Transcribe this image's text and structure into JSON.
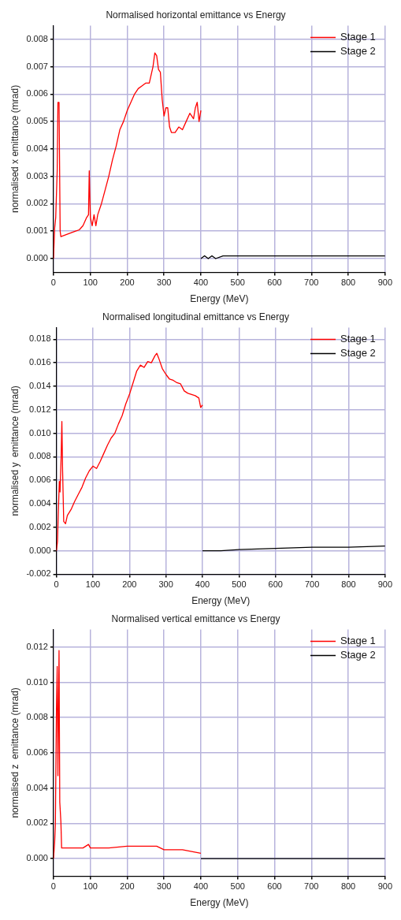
{
  "chart_data": [
    {
      "type": "line",
      "title": "Normalised horizontal emittance vs Energy",
      "xlabel": "Energy (MeV)",
      "ylabel": "normalised x emittance (mrad)",
      "xlim": [
        0,
        900
      ],
      "xticks": [
        0,
        100,
        200,
        300,
        400,
        500,
        600,
        700,
        800,
        900
      ],
      "ylim": [
        -0.0005,
        0.0085
      ],
      "yticks": [
        {
          "value": 0,
          "label": "0.000"
        },
        {
          "value": 0.001,
          "label": "0.001"
        },
        {
          "value": 0.002,
          "label": "0.002"
        },
        {
          "value": 0.003,
          "label": "0.003"
        },
        {
          "value": 0.004,
          "label": "0.004"
        },
        {
          "value": 0.005,
          "label": "0.005"
        },
        {
          "value": 0.006,
          "label": "0.006"
        },
        {
          "value": 0.007,
          "label": "0.007"
        },
        {
          "value": 0.008,
          "label": "0.008"
        }
      ],
      "grid": true,
      "legend": "top right",
      "series": [
        {
          "name": "Stage 1",
          "color": "#ff0000",
          "x": [
            0,
            3,
            6,
            10,
            12,
            15,
            18,
            20,
            30,
            40,
            50,
            60,
            70,
            80,
            90,
            95,
            97,
            100,
            105,
            110,
            115,
            120,
            130,
            140,
            150,
            160,
            170,
            180,
            190,
            200,
            210,
            220,
            230,
            240,
            250,
            260,
            270,
            275,
            280,
            285,
            290,
            295,
            300,
            305,
            310,
            315,
            320,
            330,
            340,
            350,
            360,
            370,
            380,
            385,
            390,
            395,
            400
          ],
          "values": [
            0,
            0.0011,
            0.0015,
            0.0032,
            0.0057,
            0.0057,
            0.001,
            0.0008,
            0.00085,
            0.0009,
            0.00095,
            0.001,
            0.00105,
            0.0012,
            0.0015,
            0.0016,
            0.0032,
            0.0015,
            0.0012,
            0.0016,
            0.0012,
            0.0016,
            0.002,
            0.0025,
            0.003,
            0.0036,
            0.0041,
            0.0047,
            0.005,
            0.0054,
            0.0057,
            0.006,
            0.0062,
            0.0063,
            0.0064,
            0.0064,
            0.007,
            0.0075,
            0.0074,
            0.0069,
            0.0068,
            0.0058,
            0.0052,
            0.0055,
            0.0055,
            0.0048,
            0.0046,
            0.0046,
            0.0048,
            0.0047,
            0.005,
            0.0053,
            0.0051,
            0.0055,
            0.0057,
            0.005,
            0.0054
          ]
        },
        {
          "name": "Stage 2",
          "color": "#000000",
          "x": [
            400,
            410,
            420,
            430,
            440,
            460,
            480,
            500,
            600,
            700,
            800,
            900
          ],
          "values": [
            0,
            0.0001,
            0,
            0.0001,
            0,
            0.0001,
            0.0001,
            0.0001,
            0.0001,
            0.0001,
            0.0001,
            0.0001
          ]
        }
      ]
    },
    {
      "type": "line",
      "title": "Normalised longitudinal emittance vs Energy",
      "xlabel": "Energy (MeV)",
      "ylabel": "normalised y  emittance (mrad)",
      "xlim": [
        0,
        900
      ],
      "xticks": [
        0,
        100,
        200,
        300,
        400,
        500,
        600,
        700,
        800,
        900
      ],
      "ylim": [
        -0.002,
        0.019
      ],
      "yticks": [
        {
          "value": -0.002,
          "label": "-0.002"
        },
        {
          "value": 0,
          "label": "0.000"
        },
        {
          "value": 0.002,
          "label": "0.002"
        },
        {
          "value": 0.004,
          "label": "0.004"
        },
        {
          "value": 0.006,
          "label": "0.006"
        },
        {
          "value": 0.008,
          "label": "0.008"
        },
        {
          "value": 0.01,
          "label": "0.010"
        },
        {
          "value": 0.012,
          "label": "0.012"
        },
        {
          "value": 0.014,
          "label": "0.014"
        },
        {
          "value": 0.016,
          "label": "0.016"
        },
        {
          "value": 0.018,
          "label": "0.018"
        }
      ],
      "grid": true,
      "legend": "top right",
      "series": [
        {
          "name": "Stage 1",
          "color": "#ff0000",
          "x": [
            0,
            3,
            5,
            8,
            10,
            13,
            15,
            17,
            20,
            25,
            30,
            40,
            50,
            60,
            70,
            80,
            90,
            100,
            110,
            120,
            130,
            140,
            150,
            160,
            170,
            180,
            190,
            200,
            210,
            220,
            230,
            240,
            250,
            260,
            270,
            275,
            280,
            290,
            300,
            310,
            320,
            330,
            340,
            350,
            360,
            370,
            380,
            390,
            395,
            400
          ],
          "values": [
            0,
            0.0008,
            0.003,
            0.0059,
            0.005,
            0.008,
            0.011,
            0.0068,
            0.0025,
            0.0023,
            0.003,
            0.0035,
            0.0042,
            0.0048,
            0.0054,
            0.0062,
            0.0068,
            0.0072,
            0.007,
            0.0076,
            0.0083,
            0.009,
            0.0096,
            0.01,
            0.0108,
            0.0115,
            0.0125,
            0.0133,
            0.0143,
            0.0153,
            0.0158,
            0.0156,
            0.0161,
            0.016,
            0.0166,
            0.0168,
            0.0164,
            0.0155,
            0.015,
            0.0146,
            0.0145,
            0.0143,
            0.0142,
            0.0136,
            0.0134,
            0.0133,
            0.0132,
            0.013,
            0.0122,
            0.0124
          ]
        },
        {
          "name": "Stage 2",
          "color": "#000000",
          "x": [
            400,
            450,
            500,
            600,
            700,
            800,
            900
          ],
          "values": [
            0,
            0,
            0.0001,
            0.0002,
            0.0003,
            0.0003,
            0.0004
          ]
        }
      ]
    },
    {
      "type": "line",
      "title": "Normalised vertical emittance vs Energy",
      "xlabel": "Energy (MeV)",
      "ylabel": "normalised z  emittance (mrad)",
      "xlim": [
        0,
        900
      ],
      "xticks": [
        0,
        100,
        200,
        300,
        400,
        500,
        600,
        700,
        800,
        900
      ],
      "ylim": [
        -0.001,
        0.013
      ],
      "yticks": [
        {
          "value": 0,
          "label": "0.000"
        },
        {
          "value": 0.002,
          "label": "0.002"
        },
        {
          "value": 0.004,
          "label": "0.004"
        },
        {
          "value": 0.006,
          "label": "0.006"
        },
        {
          "value": 0.008,
          "label": "0.008"
        },
        {
          "value": 0.01,
          "label": "0.010"
        },
        {
          "value": 0.012,
          "label": "0.012"
        }
      ],
      "grid": true,
      "legend": "top right",
      "series": [
        {
          "name": "Stage 1",
          "color": "#ff0000",
          "x": [
            0,
            3,
            5,
            8,
            10,
            12,
            15,
            17,
            20,
            22,
            50,
            80,
            95,
            100,
            150,
            200,
            230,
            280,
            300,
            350,
            400
          ],
          "values": [
            0,
            0.0009,
            0.0019,
            0.0085,
            0.0109,
            0.0047,
            0.0118,
            0.0032,
            0.0021,
            0.0006,
            0.0006,
            0.0006,
            0.0008,
            0.0006,
            0.0006,
            0.0007,
            0.0007,
            0.0007,
            0.0005,
            0.0005,
            0.0003
          ]
        },
        {
          "name": "Stage 2",
          "color": "#000000",
          "x": [
            400,
            900
          ],
          "values": [
            0,
            0
          ]
        }
      ]
    }
  ]
}
